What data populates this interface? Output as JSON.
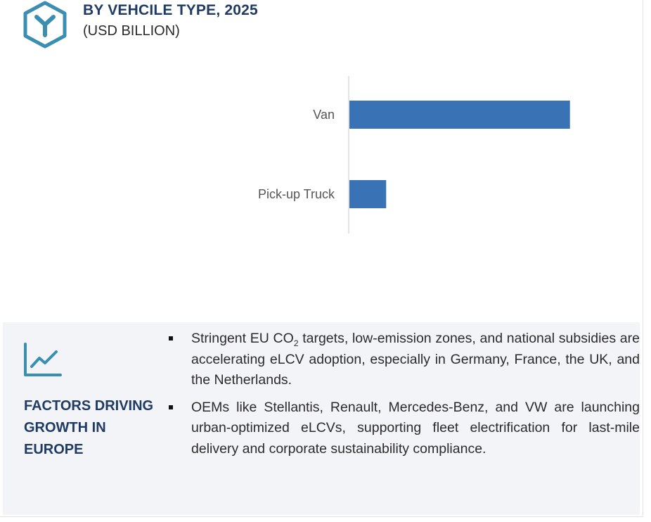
{
  "header": {
    "icon": "hexagon-y-icon",
    "title": "BY VEHCILE TYPE, 2025",
    "subtitle": "(USD BILLION)"
  },
  "chart_data": {
    "type": "bar",
    "orientation": "horizontal",
    "title": "BY VEHCILE TYPE, 2025",
    "subtitle": "(USD BILLION)",
    "categories": [
      "Van",
      "Pick-up Truck"
    ],
    "values": [
      6.0,
      1.0
    ],
    "color": "#3a73b5",
    "xlim": [
      0,
      7
    ],
    "grid": false,
    "legend": "none",
    "xlabel": "",
    "ylabel": ""
  },
  "panel": {
    "icon": "line-chart-icon",
    "heading": "FACTORS DRIVING GROWTH IN EUROPE",
    "bullets": [
      {
        "pre": "Stringent EU CO",
        "sub": "2",
        "post": " targets, low-emission zones, and national subsidies are accelerating eLCV adoption, especially in Germany, France, the UK, and the Netherlands."
      },
      {
        "pre": "OEMs like Stellantis, Renault, Mercedes-Benz, and VW are launching urban-optimized eLCVs, supporting fleet electrification for last-mile delivery and corporate sustainability compliance.",
        "sub": "",
        "post": ""
      }
    ]
  },
  "colors": {
    "heading": "#1f3b63",
    "accent": "#3a8fb0",
    "bar": "#3a73b5",
    "panel_bg": "#f3f4f7"
  }
}
